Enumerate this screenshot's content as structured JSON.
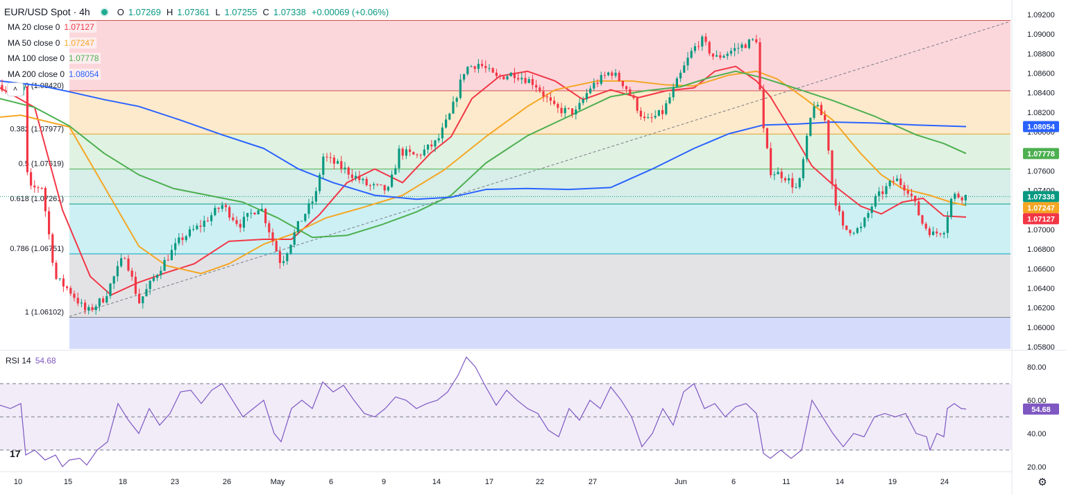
{
  "header": {
    "symbol": "EUR/USD Spot · 4h",
    "open_label": "O",
    "open": "1.07269",
    "high_label": "H",
    "high": "1.07361",
    "low_label": "L",
    "low": "1.07255",
    "close_label": "C",
    "close": "1.07338",
    "change": "+0.00069 (+0.06%)"
  },
  "moving_averages": [
    {
      "label": "MA 20 close 0",
      "value": "1.07127",
      "color": "#f23645"
    },
    {
      "label": "MA 50 close 0",
      "value": "1.07247",
      "color": "#f5a623"
    },
    {
      "label": "MA 100 close 0",
      "value": "1.07778",
      "color": "#4caf50"
    },
    {
      "label": "MA 200 close 0",
      "value": "1.08054",
      "color": "#2962ff"
    }
  ],
  "rsi": {
    "label": "RSI 14",
    "value": "54.68",
    "color": "#7e57c2"
  },
  "chart_data": {
    "type": "line",
    "title": "EUR/USD Spot · 4h",
    "y_axis": {
      "ticks": [
        "1.09200",
        "1.09000",
        "1.08800",
        "1.08600",
        "1.08400",
        "1.08200",
        "1.08000",
        "1.07800",
        "1.07600",
        "1.07400",
        "1.07200",
        "1.07000",
        "1.06800",
        "1.06600",
        "1.06400",
        "1.06200",
        "1.06000",
        "1.05800"
      ],
      "ylim": [
        1.058,
        1.092
      ]
    },
    "x_axis": {
      "ticks": [
        "10",
        "15",
        "18",
        "23",
        "26",
        "May",
        "6",
        "9",
        "14",
        "17",
        "22",
        "27",
        "Jun",
        "6",
        "11",
        "14",
        "19",
        "24"
      ]
    },
    "price_tags": [
      {
        "value": "1.08054",
        "color": "#2962ff"
      },
      {
        "value": "1.07778",
        "color": "#4caf50"
      },
      {
        "value": "1.07338",
        "color": "#089981"
      },
      {
        "value": "1.07247",
        "color": "#f5a623"
      },
      {
        "value": "1.07127",
        "color": "#f23645"
      }
    ],
    "fibonacci": [
      {
        "label": "0 (1.08420)",
        "level": 1.0842,
        "band_color": "#f8d7da"
      },
      {
        "label": "0.382 (1.07977)",
        "level": 1.07977,
        "band_color": "#fdeacc"
      },
      {
        "label": "0.5 (1.07619)",
        "level": 1.07619,
        "band_color": "#e0f2e1"
      },
      {
        "label": "0.618 (1.07261)",
        "level": 1.07261,
        "band_color": "#d7eee9"
      },
      {
        "label": "0.786 (1.06751)",
        "level": 1.06751,
        "band_color": "#cdf0f4"
      },
      {
        "label": "1 (1.06102)",
        "level": 1.06102,
        "band_color": "#e3e3e6"
      }
    ],
    "series": [
      {
        "name": "MA 20 close 0",
        "color": "#f23645",
        "points": [
          [
            0,
            1.0845
          ],
          [
            50,
            1.0825
          ],
          [
            90,
            1.072
          ],
          [
            130,
            1.0652
          ],
          [
            160,
            1.0633
          ],
          [
            200,
            1.0646
          ],
          [
            240,
            1.0656
          ],
          [
            280,
            1.0665
          ],
          [
            330,
            1.0688
          ],
          [
            380,
            1.069
          ],
          [
            420,
            1.069
          ],
          [
            460,
            1.0715
          ],
          [
            500,
            1.0748
          ],
          [
            540,
            1.0762
          ],
          [
            580,
            1.0748
          ],
          [
            620,
            1.0778
          ],
          [
            650,
            1.0795
          ],
          [
            680,
            1.0834
          ],
          [
            720,
            1.0857
          ],
          [
            760,
            1.0862
          ],
          [
            800,
            1.0852
          ],
          [
            840,
            1.0833
          ],
          [
            880,
            1.0843
          ],
          [
            920,
            1.0835
          ],
          [
            960,
            1.0842
          ],
          [
            1000,
            1.0845
          ],
          [
            1030,
            1.0862
          ],
          [
            1060,
            1.0867
          ],
          [
            1090,
            1.0852
          ],
          [
            1110,
            1.0836
          ],
          [
            1140,
            1.0801
          ],
          [
            1170,
            1.0765
          ],
          [
            1200,
            1.0746
          ],
          [
            1240,
            1.0724
          ],
          [
            1270,
            1.0716
          ],
          [
            1300,
            1.0728
          ],
          [
            1330,
            1.0732
          ],
          [
            1360,
            1.0714
          ],
          [
            1392,
            1.07127
          ]
        ]
      },
      {
        "name": "MA 50 close 0",
        "color": "#f5a623",
        "points": [
          [
            0,
            1.0815
          ],
          [
            30,
            1.0817
          ],
          [
            100,
            1.0805
          ],
          [
            160,
            1.0732
          ],
          [
            200,
            1.0683
          ],
          [
            240,
            1.0663
          ],
          [
            290,
            1.0655
          ],
          [
            330,
            1.0665
          ],
          [
            380,
            1.0685
          ],
          [
            420,
            1.0695
          ],
          [
            470,
            1.0712
          ],
          [
            520,
            1.0722
          ],
          [
            580,
            1.0735
          ],
          [
            640,
            1.0761
          ],
          [
            700,
            1.0795
          ],
          [
            760,
            1.0826
          ],
          [
            800,
            1.0843
          ],
          [
            860,
            1.0852
          ],
          [
            910,
            1.0852
          ],
          [
            960,
            1.0848
          ],
          [
            1000,
            1.0847
          ],
          [
            1050,
            1.0858
          ],
          [
            1090,
            1.0862
          ],
          [
            1120,
            1.0854
          ],
          [
            1160,
            1.0834
          ],
          [
            1200,
            1.0812
          ],
          [
            1240,
            1.0778
          ],
          [
            1270,
            1.0756
          ],
          [
            1300,
            1.0742
          ],
          [
            1340,
            1.0735
          ],
          [
            1370,
            1.0728
          ],
          [
            1392,
            1.07247
          ]
        ]
      },
      {
        "name": "MA 100 close 0",
        "color": "#4caf50",
        "points": [
          [
            0,
            1.0834
          ],
          [
            50,
            1.0825
          ],
          [
            100,
            1.0806
          ],
          [
            150,
            1.0778
          ],
          [
            200,
            1.0756
          ],
          [
            250,
            1.0742
          ],
          [
            300,
            1.0735
          ],
          [
            350,
            1.0728
          ],
          [
            400,
            1.0712
          ],
          [
            450,
            1.0692
          ],
          [
            500,
            1.0694
          ],
          [
            550,
            1.0705
          ],
          [
            600,
            1.0718
          ],
          [
            650,
            1.0735
          ],
          [
            700,
            1.0768
          ],
          [
            760,
            1.0796
          ],
          [
            820,
            1.0816
          ],
          [
            880,
            1.0836
          ],
          [
            930,
            1.0842
          ],
          [
            980,
            1.0846
          ],
          [
            1020,
            1.0855
          ],
          [
            1060,
            1.0862
          ],
          [
            1100,
            1.0855
          ],
          [
            1140,
            1.0846
          ],
          [
            1200,
            1.0832
          ],
          [
            1260,
            1.0816
          ],
          [
            1320,
            1.0797
          ],
          [
            1360,
            1.0788
          ],
          [
            1392,
            1.07778
          ]
        ]
      },
      {
        "name": "MA 200 close 0",
        "color": "#2962ff",
        "points": [
          [
            0,
            1.0852
          ],
          [
            60,
            1.0847
          ],
          [
            100,
            1.0841
          ],
          [
            150,
            1.0833
          ],
          [
            200,
            1.0826
          ],
          [
            260,
            1.0812
          ],
          [
            320,
            1.0797
          ],
          [
            380,
            1.0783
          ],
          [
            430,
            1.0762
          ],
          [
            480,
            1.0748
          ],
          [
            540,
            1.0735
          ],
          [
            600,
            1.0731
          ],
          [
            650,
            1.0733
          ],
          [
            700,
            1.0741
          ],
          [
            760,
            1.0742
          ],
          [
            820,
            1.0741
          ],
          [
            880,
            1.0743
          ],
          [
            940,
            1.0762
          ],
          [
            1000,
            1.0783
          ],
          [
            1050,
            1.0798
          ],
          [
            1100,
            1.0807
          ],
          [
            1150,
            1.0808
          ],
          [
            1200,
            1.081
          ],
          [
            1260,
            1.0809
          ],
          [
            1320,
            1.0807
          ],
          [
            1392,
            1.08054
          ]
        ]
      }
    ],
    "rsi": {
      "y_ticks": [
        "80.00",
        "60.00",
        "40.00",
        "20.00"
      ],
      "upper": 70,
      "mid": 50,
      "lower": 30,
      "ylim": [
        17,
        88
      ],
      "points": [
        [
          0,
          57
        ],
        [
          15,
          55
        ],
        [
          30,
          58
        ],
        [
          37,
          27
        ],
        [
          50,
          30
        ],
        [
          65,
          24
        ],
        [
          80,
          27
        ],
        [
          90,
          20
        ],
        [
          100,
          24
        ],
        [
          115,
          25
        ],
        [
          125,
          21
        ],
        [
          140,
          30
        ],
        [
          155,
          35
        ],
        [
          170,
          58
        ],
        [
          185,
          48
        ],
        [
          200,
          40
        ],
        [
          215,
          55
        ],
        [
          230,
          45
        ],
        [
          245,
          52
        ],
        [
          260,
          65
        ],
        [
          275,
          66
        ],
        [
          290,
          58
        ],
        [
          305,
          66
        ],
        [
          320,
          70
        ],
        [
          335,
          60
        ],
        [
          350,
          50
        ],
        [
          365,
          55
        ],
        [
          380,
          60
        ],
        [
          395,
          40
        ],
        [
          405,
          35
        ],
        [
          420,
          55
        ],
        [
          435,
          60
        ],
        [
          450,
          55
        ],
        [
          465,
          71
        ],
        [
          480,
          65
        ],
        [
          495,
          69
        ],
        [
          510,
          60
        ],
        [
          525,
          52
        ],
        [
          540,
          50
        ],
        [
          555,
          55
        ],
        [
          570,
          62
        ],
        [
          585,
          60
        ],
        [
          600,
          55
        ],
        [
          615,
          58
        ],
        [
          630,
          60
        ],
        [
          645,
          65
        ],
        [
          660,
          75
        ],
        [
          672,
          86
        ],
        [
          685,
          80
        ],
        [
          700,
          68
        ],
        [
          715,
          57
        ],
        [
          730,
          66
        ],
        [
          745,
          60
        ],
        [
          760,
          55
        ],
        [
          775,
          52
        ],
        [
          790,
          42
        ],
        [
          805,
          38
        ],
        [
          820,
          55
        ],
        [
          835,
          48
        ],
        [
          850,
          60
        ],
        [
          865,
          55
        ],
        [
          880,
          68
        ],
        [
          895,
          60
        ],
        [
          910,
          50
        ],
        [
          925,
          32
        ],
        [
          940,
          40
        ],
        [
          955,
          55
        ],
        [
          970,
          45
        ],
        [
          985,
          65
        ],
        [
          1000,
          70
        ],
        [
          1015,
          55
        ],
        [
          1030,
          58
        ],
        [
          1045,
          50
        ],
        [
          1060,
          56
        ],
        [
          1075,
          58
        ],
        [
          1090,
          52
        ],
        [
          1100,
          28
        ],
        [
          1110,
          25
        ],
        [
          1125,
          30
        ],
        [
          1140,
          25
        ],
        [
          1155,
          30
        ],
        [
          1170,
          60
        ],
        [
          1185,
          50
        ],
        [
          1200,
          40
        ],
        [
          1215,
          32
        ],
        [
          1230,
          40
        ],
        [
          1245,
          38
        ],
        [
          1260,
          50
        ],
        [
          1275,
          52
        ],
        [
          1290,
          50
        ],
        [
          1305,
          52
        ],
        [
          1320,
          40
        ],
        [
          1335,
          38
        ],
        [
          1340,
          30
        ],
        [
          1350,
          40
        ],
        [
          1360,
          38
        ],
        [
          1365,
          55
        ],
        [
          1375,
          58
        ],
        [
          1385,
          55
        ],
        [
          1392,
          54.68
        ]
      ]
    }
  }
}
